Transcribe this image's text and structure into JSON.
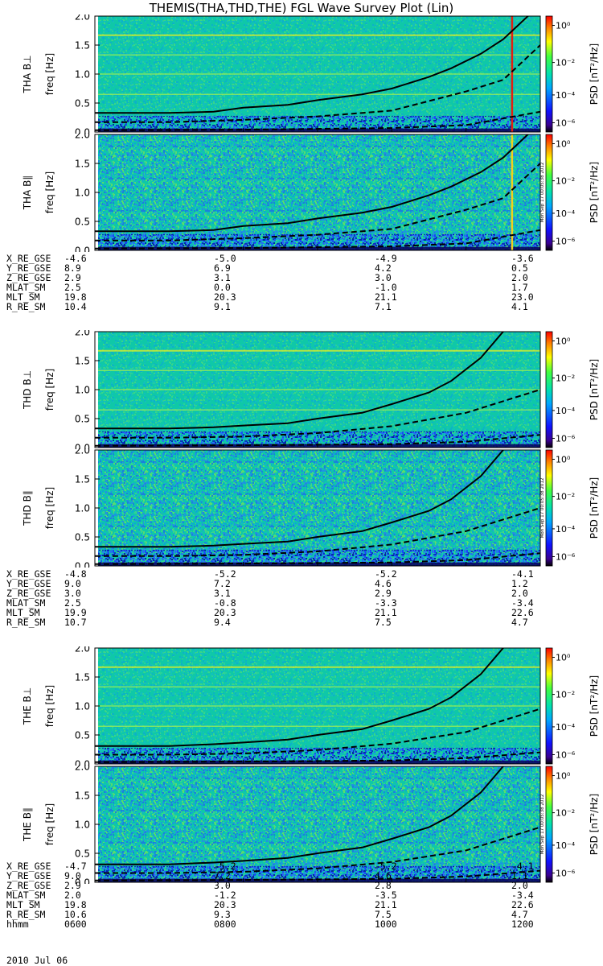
{
  "title": "THEMIS(THA,THD,THE) FGL Wave Survey Plot (Lin)",
  "colorbar_label": "PSD [nT²/Hz]",
  "colorbar_ticks": [
    "10⁰",
    "10⁻²",
    "10⁻⁴",
    "10⁻⁶"
  ],
  "freq_label": "freq [Hz]",
  "timestamp_stamp": "Mon Sep 17 00:05:38 2012",
  "colors": {
    "spectrogram_bg": "#0fc8a8",
    "low_band": "#1a3aff",
    "curve": "#000000",
    "marker_red": "#e02010"
  },
  "chart_data": [
    {
      "type": "heatmap",
      "probe": "THA",
      "component": "B⊥",
      "ylabel": "THA B⊥",
      "ylim": [
        0,
        2.0
      ],
      "yticks": [
        "0.0",
        "0.5",
        "1.0",
        "1.5",
        "2.0"
      ],
      "xlim": [
        600,
        1200
      ],
      "cyclotron_curve": {
        "x": [
          600,
          700,
          760,
          800,
          860,
          900,
          960,
          1000,
          1050,
          1080,
          1120,
          1150,
          1200
        ],
        "y": [
          0.33,
          0.33,
          0.35,
          0.42,
          0.47,
          0.55,
          0.65,
          0.75,
          0.95,
          1.1,
          1.35,
          1.6,
          2.2
        ]
      },
      "half_curve": {
        "x": [
          600,
          700,
          800,
          900,
          1000,
          1100,
          1150,
          1200
        ],
        "y": [
          0.17,
          0.17,
          0.21,
          0.27,
          0.37,
          0.7,
          0.9,
          1.5
        ]
      },
      "lower_curve": {
        "x": [
          600,
          800,
          1000,
          1100,
          1200
        ],
        "y": [
          0.03,
          0.04,
          0.07,
          0.12,
          0.35
        ]
      },
      "markers": [
        1162
      ]
    },
    {
      "type": "heatmap",
      "probe": "THA",
      "component": "B∥",
      "ylabel": "THA B∥",
      "ylim": [
        0,
        2.0
      ],
      "yticks": [
        "0.0",
        "0.5",
        "1.0",
        "1.5",
        "2.0"
      ],
      "xlim": [
        600,
        1200
      ],
      "cyclotron_curve": {
        "x": [
          600,
          700,
          760,
          800,
          860,
          900,
          960,
          1000,
          1050,
          1080,
          1120,
          1150,
          1200
        ],
        "y": [
          0.33,
          0.33,
          0.35,
          0.42,
          0.47,
          0.55,
          0.65,
          0.75,
          0.95,
          1.1,
          1.35,
          1.6,
          2.2
        ]
      },
      "half_curve": {
        "x": [
          600,
          700,
          800,
          900,
          1000,
          1100,
          1150,
          1200
        ],
        "y": [
          0.17,
          0.17,
          0.21,
          0.27,
          0.37,
          0.7,
          0.9,
          1.5
        ]
      },
      "lower_curve": {
        "x": [
          600,
          800,
          1000,
          1100,
          1200
        ],
        "y": [
          0.03,
          0.04,
          0.07,
          0.12,
          0.35
        ]
      },
      "markers": [
        1162
      ]
    },
    {
      "type": "heatmap",
      "probe": "THD",
      "component": "B⊥",
      "ylabel": "THD B⊥",
      "ylim": [
        0,
        2.0
      ],
      "yticks": [
        "0.0",
        "0.5",
        "1.0",
        "1.5",
        "2.0"
      ],
      "xlim": [
        600,
        1200
      ],
      "cyclotron_curve": {
        "x": [
          600,
          700,
          760,
          800,
          860,
          900,
          960,
          1000,
          1050,
          1080,
          1120,
          1150,
          1200
        ],
        "y": [
          0.33,
          0.33,
          0.35,
          0.38,
          0.42,
          0.5,
          0.6,
          0.75,
          0.95,
          1.15,
          1.55,
          2.0,
          2.3
        ]
      },
      "half_curve": {
        "x": [
          600,
          700,
          800,
          900,
          1000,
          1100,
          1150,
          1200
        ],
        "y": [
          0.17,
          0.17,
          0.19,
          0.25,
          0.37,
          0.6,
          0.8,
          1.0
        ]
      },
      "lower_curve": {
        "x": [
          600,
          800,
          1000,
          1100,
          1200
        ],
        "y": [
          0.03,
          0.04,
          0.06,
          0.1,
          0.22
        ]
      },
      "markers": []
    },
    {
      "type": "heatmap",
      "probe": "THD",
      "component": "B∥",
      "ylabel": "THD B∥",
      "ylim": [
        0,
        2.0
      ],
      "yticks": [
        "0.0",
        "0.5",
        "1.0",
        "1.5",
        "2.0"
      ],
      "xlim": [
        600,
        1200
      ],
      "cyclotron_curve": {
        "x": [
          600,
          700,
          760,
          800,
          860,
          900,
          960,
          1000,
          1050,
          1080,
          1120,
          1150,
          1200
        ],
        "y": [
          0.33,
          0.33,
          0.35,
          0.38,
          0.42,
          0.5,
          0.6,
          0.75,
          0.95,
          1.15,
          1.55,
          2.0,
          2.3
        ]
      },
      "half_curve": {
        "x": [
          600,
          700,
          800,
          900,
          1000,
          1100,
          1150,
          1200
        ],
        "y": [
          0.17,
          0.17,
          0.19,
          0.25,
          0.37,
          0.6,
          0.8,
          1.0
        ]
      },
      "lower_curve": {
        "x": [
          600,
          800,
          1000,
          1100,
          1200
        ],
        "y": [
          0.03,
          0.04,
          0.06,
          0.1,
          0.22
        ]
      },
      "markers": []
    },
    {
      "type": "heatmap",
      "probe": "THE",
      "component": "B⊥",
      "ylabel": "THE B⊥",
      "ylim": [
        0,
        2.0
      ],
      "yticks": [
        "0.0",
        "0.5",
        "1.0",
        "1.5",
        "2.0"
      ],
      "xlim": [
        600,
        1200
      ],
      "cyclotron_curve": {
        "x": [
          600,
          700,
          760,
          800,
          860,
          900,
          960,
          1000,
          1050,
          1080,
          1120,
          1150,
          1200
        ],
        "y": [
          0.31,
          0.31,
          0.34,
          0.37,
          0.42,
          0.5,
          0.6,
          0.75,
          0.95,
          1.15,
          1.55,
          2.0,
          2.3
        ]
      },
      "half_curve": {
        "x": [
          600,
          700,
          800,
          900,
          1000,
          1100,
          1150,
          1200
        ],
        "y": [
          0.16,
          0.16,
          0.18,
          0.24,
          0.35,
          0.55,
          0.75,
          0.95
        ]
      },
      "lower_curve": {
        "x": [
          600,
          800,
          1000,
          1100,
          1200
        ],
        "y": [
          0.03,
          0.04,
          0.06,
          0.1,
          0.2
        ]
      },
      "markers": []
    },
    {
      "type": "heatmap",
      "probe": "THE",
      "component": "B∥",
      "ylabel": "THE B∥",
      "ylim": [
        0,
        2.0
      ],
      "yticks": [
        "0.0",
        "0.5",
        "1.0",
        "1.5",
        "2.0"
      ],
      "xlim": [
        600,
        1200
      ],
      "cyclotron_curve": {
        "x": [
          600,
          700,
          760,
          800,
          860,
          900,
          960,
          1000,
          1050,
          1080,
          1120,
          1150,
          1200
        ],
        "y": [
          0.31,
          0.31,
          0.34,
          0.37,
          0.42,
          0.5,
          0.6,
          0.75,
          0.95,
          1.15,
          1.55,
          2.0,
          2.3
        ]
      },
      "half_curve": {
        "x": [
          600,
          700,
          800,
          900,
          1000,
          1100,
          1150,
          1200
        ],
        "y": [
          0.16,
          0.16,
          0.18,
          0.24,
          0.35,
          0.55,
          0.75,
          0.95
        ]
      },
      "lower_curve": {
        "x": [
          600,
          800,
          1000,
          1100,
          1200
        ],
        "y": [
          0.03,
          0.04,
          0.06,
          0.1,
          0.2
        ]
      },
      "markers": []
    }
  ],
  "ephemeris": [
    {
      "probe": "THA",
      "rows": [
        {
          "name": "X_RE_GSE",
          "values": [
            "-4.6",
            "-5.0",
            "-4.9",
            "-3.6"
          ]
        },
        {
          "name": "Y_RE_GSE",
          "values": [
            "8.9",
            "6.9",
            "4.2",
            "0.5"
          ]
        },
        {
          "name": "Z_RE_GSE",
          "values": [
            "2.9",
            "3.1",
            "3.0",
            "2.0"
          ]
        },
        {
          "name": "MLAT_SM",
          "values": [
            "2.5",
            "0.0",
            "-1.0",
            "1.7"
          ]
        },
        {
          "name": "MLT_SM",
          "values": [
            "19.8",
            "20.3",
            "21.1",
            "23.0"
          ]
        },
        {
          "name": "R_RE_SM",
          "values": [
            "10.4",
            "9.1",
            "7.1",
            "4.1"
          ]
        }
      ]
    },
    {
      "probe": "THD",
      "rows": [
        {
          "name": "X_RE_GSE",
          "values": [
            "-4.8",
            "-5.2",
            "-5.2",
            "-4.1"
          ]
        },
        {
          "name": "Y_RE_GSE",
          "values": [
            "9.0",
            "7.2",
            "4.6",
            "1.2"
          ]
        },
        {
          "name": "Z_RE_GSE",
          "values": [
            "3.0",
            "3.1",
            "2.9",
            "2.0"
          ]
        },
        {
          "name": "MLAT_SM",
          "values": [
            "2.5",
            "-0.8",
            "-3.3",
            "-3.4"
          ]
        },
        {
          "name": "MLT_SM",
          "values": [
            "19.9",
            "20.3",
            "21.1",
            "22.6"
          ]
        },
        {
          "name": "R_RE_SM",
          "values": [
            "10.7",
            "9.4",
            "7.5",
            "4.7"
          ]
        }
      ]
    },
    {
      "probe": "THE",
      "rows": [
        {
          "name": "X_RE_GSE",
          "values": [
            "-4.7",
            "-5.2",
            "-5.2",
            "-4.1"
          ]
        },
        {
          "name": "Y_RE_GSE",
          "values": [
            "9.0",
            "7.2",
            "4.6",
            "1.1"
          ]
        },
        {
          "name": "Z_RE_GSE",
          "values": [
            "2.9",
            "3.0",
            "2.8",
            "2.0"
          ]
        },
        {
          "name": "MLAT_SM",
          "values": [
            "2.0",
            "-1.2",
            "-3.5",
            "-3.4"
          ]
        },
        {
          "name": "MLT_SM",
          "values": [
            "19.8",
            "20.3",
            "21.1",
            "22.6"
          ]
        },
        {
          "name": "R_RE_SM",
          "values": [
            "10.6",
            "9.3",
            "7.5",
            "4.7"
          ]
        },
        {
          "name": "hhmm",
          "values": [
            "0600",
            "0800",
            "1000",
            "1200"
          ]
        }
      ]
    }
  ],
  "date": "2010 Jul 06"
}
